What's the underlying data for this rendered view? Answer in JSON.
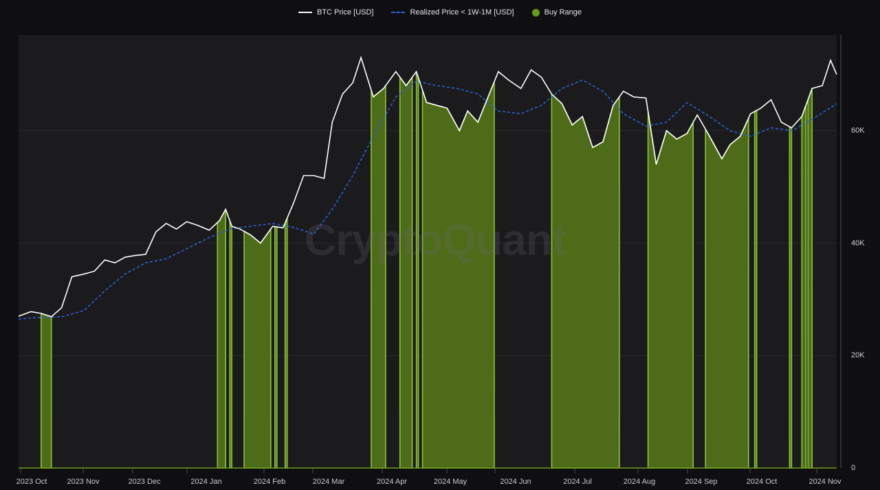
{
  "legend": {
    "btc_price": "BTC Price [USD]",
    "realized_price": "Realized Price < 1W-1M [USD]",
    "buy_range": "Buy Range"
  },
  "watermark": "CryptoQuant",
  "colors": {
    "background": "#0f0f11",
    "plot_background": "#1b1b1e",
    "btc_price": "#ffffff",
    "realized_price": "#2f5fd0",
    "buy_range_fill": "#4e6b19",
    "buy_range_edge": "#8fc43a",
    "gridline": "#2a2a2e"
  },
  "chart_data": {
    "type": "line",
    "title": "",
    "xlabel": "",
    "ylabel": "",
    "ylim": [
      0,
      77000
    ],
    "grid": true,
    "legend_position": "top",
    "x_tick_labels": [
      "2023 Oct",
      "2023 Nov",
      "2023 Dec",
      "2024 Jan",
      "2024 Feb",
      "2024 Mar",
      "2024 Apr",
      "2024 May",
      "2024 Jun",
      "2024 Jul",
      "2024 Aug",
      "2024 Sep",
      "2024 Oct",
      "2024 Nov"
    ],
    "y_tick_labels": [
      "0",
      "20K",
      "40K",
      "60K"
    ],
    "y_ticks": [
      0,
      20000,
      40000,
      60000
    ],
    "x_range": [
      "2023-09-29",
      "2024-11-01"
    ],
    "series": [
      {
        "name": "BTC Price [USD]",
        "style": "solid",
        "x": [
          "2023-09-29",
          "2023-10-05",
          "2023-10-10",
          "2023-10-15",
          "2023-10-20",
          "2023-10-25",
          "2023-10-31",
          "2023-11-05",
          "2023-11-10",
          "2023-11-15",
          "2023-11-20",
          "2023-11-25",
          "2023-11-30",
          "2023-12-05",
          "2023-12-10",
          "2023-12-15",
          "2023-12-20",
          "2023-12-25",
          "2023-12-31",
          "2024-01-05",
          "2024-01-08",
          "2024-01-11",
          "2024-01-15",
          "2024-01-20",
          "2024-01-25",
          "2024-01-31",
          "2024-02-05",
          "2024-02-10",
          "2024-02-15",
          "2024-02-20",
          "2024-02-25",
          "2024-02-29",
          "2024-03-05",
          "2024-03-10",
          "2024-03-14",
          "2024-03-20",
          "2024-03-25",
          "2024-03-31",
          "2024-04-05",
          "2024-04-10",
          "2024-04-15",
          "2024-04-20",
          "2024-04-25",
          "2024-05-01",
          "2024-05-05",
          "2024-05-10",
          "2024-05-15",
          "2024-05-20",
          "2024-05-25",
          "2024-05-31",
          "2024-06-05",
          "2024-06-10",
          "2024-06-15",
          "2024-06-20",
          "2024-06-25",
          "2024-06-30",
          "2024-07-05",
          "2024-07-10",
          "2024-07-15",
          "2024-07-20",
          "2024-07-25",
          "2024-07-31",
          "2024-08-05",
          "2024-08-10",
          "2024-08-15",
          "2024-08-20",
          "2024-08-25",
          "2024-08-31",
          "2024-09-06",
          "2024-09-10",
          "2024-09-15",
          "2024-09-20",
          "2024-09-25",
          "2024-09-30",
          "2024-10-05",
          "2024-10-10",
          "2024-10-15",
          "2024-10-20",
          "2024-10-25",
          "2024-10-29",
          "2024-11-01"
        ],
        "values": [
          27000,
          27800,
          27500,
          26900,
          28500,
          34000,
          34500,
          35000,
          37000,
          36500,
          37500,
          37800,
          38000,
          42000,
          43500,
          42500,
          43800,
          43200,
          42300,
          44000,
          46000,
          43000,
          42500,
          41500,
          40000,
          43000,
          42700,
          47000,
          52000,
          52000,
          51500,
          61500,
          66500,
          68500,
          73000,
          66000,
          67500,
          70500,
          68000,
          70500,
          65000,
          64500,
          64000,
          60000,
          63500,
          61500,
          66000,
          70500,
          69000,
          67500,
          70800,
          69500,
          66500,
          64800,
          61000,
          62500,
          57000,
          58000,
          64500,
          67000,
          66000,
          65800,
          54000,
          60000,
          58500,
          59500,
          62800,
          59000,
          55000,
          57500,
          59000,
          63000,
          64000,
          65500,
          61500,
          60500,
          62500,
          67500,
          68000,
          72500,
          70000
        ]
      },
      {
        "name": "Realized Price < 1W-1M [USD]",
        "style": "dashed",
        "x": [
          "2023-09-29",
          "2023-10-10",
          "2023-10-20",
          "2023-10-31",
          "2023-11-10",
          "2023-11-20",
          "2023-11-30",
          "2023-12-10",
          "2023-12-20",
          "2023-12-31",
          "2024-01-10",
          "2024-01-20",
          "2024-01-31",
          "2024-02-10",
          "2024-02-20",
          "2024-02-29",
          "2024-03-10",
          "2024-03-20",
          "2024-03-31",
          "2024-04-10",
          "2024-04-20",
          "2024-04-30",
          "2024-05-10",
          "2024-05-20",
          "2024-05-31",
          "2024-06-10",
          "2024-06-20",
          "2024-06-30",
          "2024-07-10",
          "2024-07-20",
          "2024-07-31",
          "2024-08-10",
          "2024-08-20",
          "2024-08-31",
          "2024-09-10",
          "2024-09-20",
          "2024-09-30",
          "2024-10-10",
          "2024-10-20",
          "2024-11-01"
        ],
        "values": [
          26500,
          26800,
          26900,
          28000,
          31500,
          34500,
          36500,
          37200,
          39000,
          41000,
          42500,
          43000,
          43500,
          42800,
          41600,
          46000,
          52000,
          59000,
          66000,
          68800,
          68000,
          67500,
          66500,
          63500,
          63000,
          64500,
          67500,
          69000,
          67000,
          63000,
          60800,
          61500,
          65000,
          62500,
          60000,
          59000,
          60500,
          60000,
          62000,
          64800
        ]
      },
      {
        "name": "Buy Range",
        "style": "area",
        "ranges": [
          [
            "2023-10-10",
            "2023-10-15"
          ],
          [
            "2024-01-04",
            "2024-01-08"
          ],
          [
            "2024-01-10",
            "2024-01-11"
          ],
          [
            "2024-01-17",
            "2024-01-30"
          ],
          [
            "2024-02-01",
            "2024-02-02"
          ],
          [
            "2024-02-06",
            "2024-02-07"
          ],
          [
            "2024-03-19",
            "2024-03-26"
          ],
          [
            "2024-04-02",
            "2024-04-08"
          ],
          [
            "2024-04-10",
            "2024-04-11"
          ],
          [
            "2024-04-13",
            "2024-05-18"
          ],
          [
            "2024-06-15",
            "2024-07-18"
          ],
          [
            "2024-08-01",
            "2024-08-23"
          ],
          [
            "2024-08-29",
            "2024-09-19"
          ],
          [
            "2024-09-22",
            "2024-09-23"
          ],
          [
            "2024-10-09",
            "2024-10-10"
          ],
          [
            "2024-10-15",
            "2024-10-17"
          ],
          [
            "2024-10-18",
            "2024-10-20"
          ]
        ]
      }
    ]
  }
}
